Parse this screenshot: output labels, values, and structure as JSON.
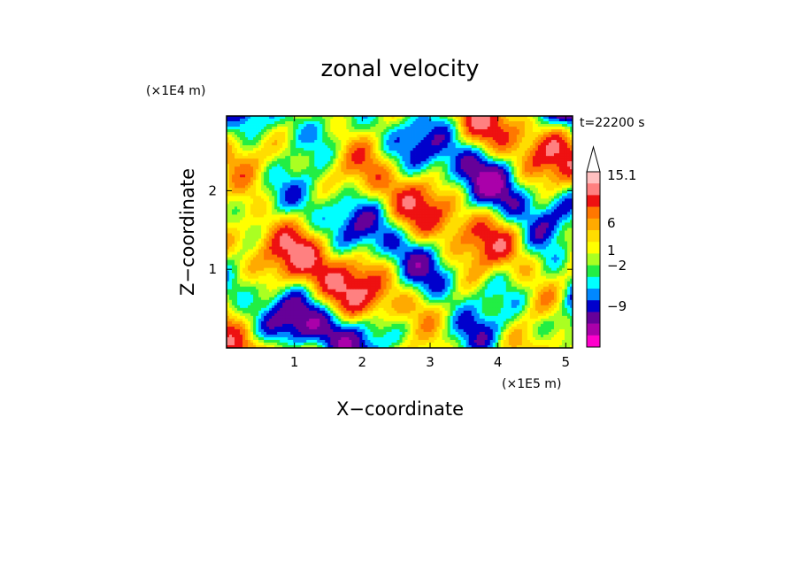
{
  "chart_data": {
    "type": "heatmap",
    "title": "zonal velocity",
    "time_label": "t=22200 s",
    "xlabel": "X−coordinate",
    "ylabel": "Z−coordinate",
    "x_unit": "(×1E5 m)",
    "y_unit": "(×1E4 m)",
    "xlim": [
      0,
      5.1
    ],
    "ylim": [
      0,
      2.95
    ],
    "x_ticks": [
      "1",
      "2",
      "3",
      "4",
      "5"
    ],
    "x_tick_values": [
      1,
      2,
      3,
      4,
      5
    ],
    "y_ticks": [
      "1",
      "2"
    ],
    "y_tick_values": [
      1,
      2
    ],
    "colorbar": {
      "labels": [
        "15.1",
        "6",
        "1",
        "−2",
        "−9"
      ],
      "label_values": [
        15.1,
        6,
        1,
        -2,
        -9
      ],
      "extend": "max",
      "colors_top_to_bottom": [
        "#ffc0c0",
        "#ff8080",
        "#ee1111",
        "#ff7700",
        "#ffaa00",
        "#ffdd00",
        "#ffff00",
        "#aaff22",
        "#22ee44",
        "#00ffff",
        "#0088ff",
        "#0000cc",
        "#660099",
        "#aa00aa",
        "#ff00cc"
      ]
    }
  }
}
